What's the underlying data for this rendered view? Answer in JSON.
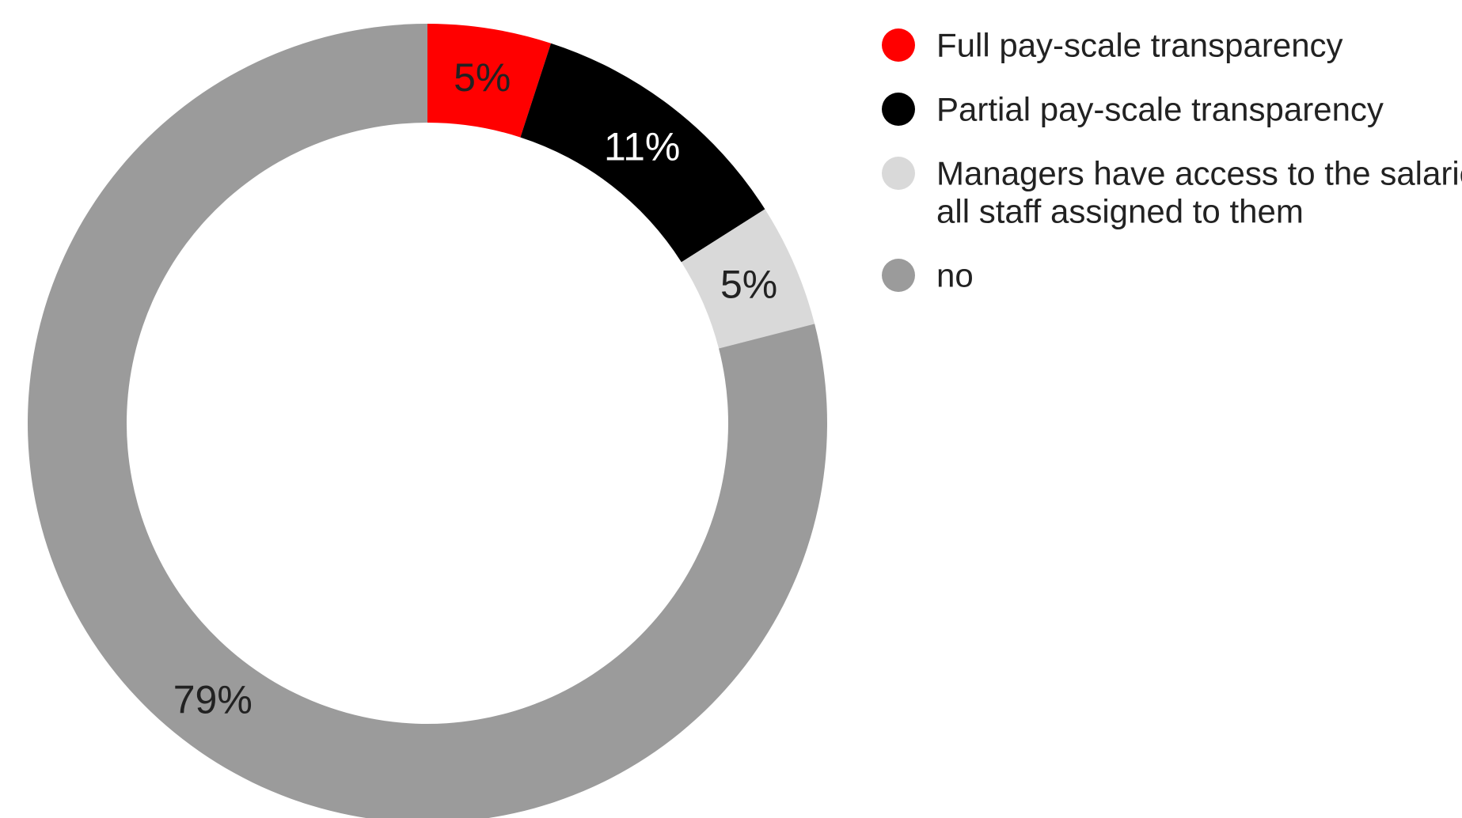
{
  "chart_data": {
    "type": "pie",
    "variant": "donut",
    "legend_position": "top-right",
    "series": [
      {
        "label": "Full pay-scale transparency",
        "value": 5,
        "display": "5%",
        "color": "#ff0000",
        "label_color": "#222222"
      },
      {
        "label": "Partial pay-scale transparency",
        "value": 11,
        "display": "11%",
        "color": "#000000",
        "label_color": "#ffffff"
      },
      {
        "label": "Managers have access to the salaries of all staff assigned to them",
        "display_lines": [
          "Managers have access to the salarie",
          "all staff assigned to them"
        ],
        "value": 5,
        "display": "5%",
        "color": "#d9d9d9",
        "label_color": "#222222"
      },
      {
        "label": "no",
        "value": 79,
        "display": "79%",
        "color": "#9b9b9b",
        "label_color": "#222222"
      }
    ]
  }
}
